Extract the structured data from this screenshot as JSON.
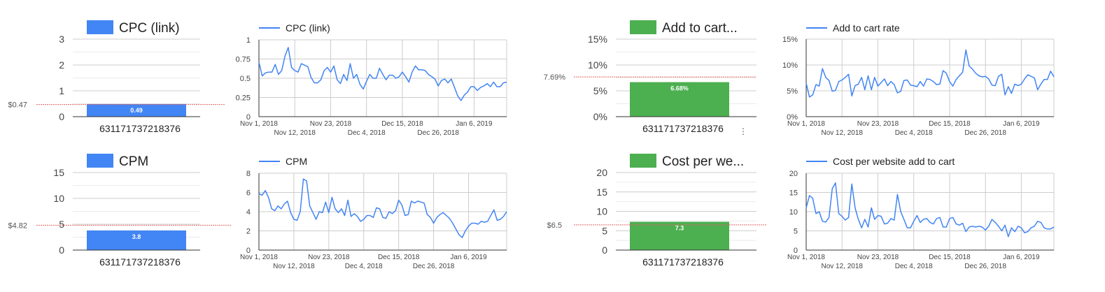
{
  "chart_data": [
    {
      "type": "bar",
      "title": "CPC (link)",
      "categories": [
        "631171737218376"
      ],
      "series": [
        {
          "name": "CPC (link)",
          "values": [
            0.49
          ]
        }
      ],
      "data_labels": [
        "0.49"
      ],
      "yticks": [
        "0",
        "1",
        "2",
        "3"
      ],
      "ylim": [
        0,
        3
      ],
      "reference_line": {
        "label": "$0.47",
        "value": 0.47
      },
      "color": "#4285f4",
      "grid": true
    },
    {
      "type": "line",
      "series": [
        {
          "name": "CPC (link)",
          "values": [
            0.71,
            0.53,
            0.57,
            0.58,
            0.58,
            0.68,
            0.55,
            0.6,
            0.79,
            0.9,
            0.64,
            0.6,
            0.58,
            0.69,
            0.67,
            0.65,
            0.51,
            0.44,
            0.44,
            0.48,
            0.6,
            0.64,
            0.58,
            0.66,
            0.48,
            0.43,
            0.55,
            0.47,
            0.69,
            0.5,
            0.55,
            0.42,
            0.36,
            0.46,
            0.55,
            0.5,
            0.5,
            0.63,
            0.55,
            0.48,
            0.54,
            0.54,
            0.5,
            0.52,
            0.58,
            0.52,
            0.45,
            0.58,
            0.66,
            0.61,
            0.61,
            0.6,
            0.55,
            0.52,
            0.49,
            0.4,
            0.47,
            0.49,
            0.44,
            0.49,
            0.38,
            0.27,
            0.21,
            0.28,
            0.32,
            0.39,
            0.39,
            0.34,
            0.38,
            0.4,
            0.43,
            0.39,
            0.45,
            0.39,
            0.39,
            0.44,
            0.45
          ]
        }
      ],
      "x_start": "Nov 1, 2018",
      "x_ticks_top": [
        "Nov 1, 2018",
        "Nov 23, 2018",
        "Dec 15, 2018",
        "Jan 6, 2019"
      ],
      "x_ticks_bottom": [
        "Nov 12, 2018",
        "Dec 4, 2018",
        "Dec 26, 2018"
      ],
      "yticks": [
        "0",
        "0.25",
        "0.5",
        "0.75",
        "1"
      ],
      "ylim": [
        0,
        1
      ],
      "legend_position": "top",
      "color": "#4285f4",
      "grid": true
    },
    {
      "type": "bar",
      "title": "Add to cart...",
      "categories": [
        "631171737218376"
      ],
      "series": [
        {
          "name": "Add to cart rate",
          "values": [
            6.68
          ]
        }
      ],
      "data_labels": [
        "6.68%"
      ],
      "yticks": [
        "0%",
        "5%",
        "10%",
        "15%"
      ],
      "ylim": [
        0,
        15
      ],
      "reference_line": {
        "label": "7.69%",
        "value": 7.69
      },
      "color": "#4caf50",
      "grid": true
    },
    {
      "type": "line",
      "series": [
        {
          "name": "Add to cart rate",
          "values": [
            6.5,
            3.8,
            4.2,
            6.2,
            5.9,
            9.3,
            7.6,
            7.0,
            4.9,
            5.1,
            6.8,
            7.1,
            7.6,
            8.2,
            4.0,
            6.0,
            6.3,
            7.6,
            5.2,
            7.9,
            5.2,
            7.6,
            5.9,
            6.6,
            7.3,
            6.0,
            6.8,
            6.2,
            4.6,
            4.9,
            7.0,
            7.1,
            6.1,
            6.0,
            5.8,
            6.8,
            5.9,
            7.3,
            7.2,
            6.8,
            6.2,
            6.3,
            8.9,
            8.4,
            6.8,
            5.9,
            7.2,
            7.9,
            8.6,
            12.9,
            9.8,
            9.2,
            8.4,
            7.9,
            7.7,
            7.8,
            7.3,
            6.1,
            6.0,
            7.8,
            8.2,
            4.2,
            5.8,
            4.5,
            6.3,
            6.0,
            6.3,
            7.3,
            8.1,
            7.8,
            7.5,
            5.2,
            6.3,
            7.2,
            7.2,
            8.8,
            7.7
          ]
        }
      ],
      "x_start": "Nov 1, 2018",
      "x_ticks_top": [
        "Nov 1, 2018",
        "Nov 23, 2018",
        "Dec 15, 2018",
        "Jan 6, 2019"
      ],
      "x_ticks_bottom": [
        "Nov 12, 2018",
        "Dec 4, 2018",
        "Dec 26, 2018"
      ],
      "yticks": [
        "0%",
        "5%",
        "10%",
        "15%"
      ],
      "ylim": [
        0,
        15
      ],
      "legend_position": "top",
      "color": "#4285f4",
      "grid": true
    },
    {
      "type": "bar",
      "title": "CPM",
      "categories": [
        "631171737218376"
      ],
      "series": [
        {
          "name": "CPM",
          "values": [
            3.8
          ]
        }
      ],
      "data_labels": [
        "3.8"
      ],
      "yticks": [
        "0",
        "5",
        "10",
        "15"
      ],
      "ylim": [
        0,
        15
      ],
      "reference_line": {
        "label": "$4.82",
        "value": 4.82
      },
      "color": "#4285f4",
      "grid": true
    },
    {
      "type": "line",
      "series": [
        {
          "name": "CPM",
          "values": [
            5.9,
            5.7,
            6.2,
            5.5,
            4.3,
            4.1,
            4.6,
            4.3,
            4.8,
            5.1,
            3.9,
            3.2,
            3.1,
            4.0,
            7.4,
            7.2,
            4.6,
            3.9,
            3.2,
            4.0,
            3.9,
            5.0,
            3.9,
            5.5,
            4.3,
            3.9,
            4.3,
            3.6,
            5.2,
            3.5,
            3.8,
            3.5,
            3.0,
            3.2,
            3.6,
            3.6,
            3.4,
            4.4,
            4.3,
            3.4,
            3.3,
            4.0,
            3.8,
            4.1,
            5.2,
            4.7,
            3.6,
            3.7,
            5.1,
            4.9,
            5.1,
            5.0,
            4.9,
            3.7,
            3.4,
            2.8,
            3.4,
            3.7,
            3.9,
            3.6,
            3.3,
            2.8,
            2.2,
            1.6,
            1.3,
            2.0,
            2.5,
            2.8,
            2.8,
            2.7,
            3.0,
            2.9,
            3.0,
            3.6,
            4.2,
            3.1,
            3.2,
            3.5,
            4.0
          ]
        }
      ],
      "x_start": "Nov 1, 2018",
      "x_ticks_top": [
        "Nov 1, 2018",
        "Nov 23, 2018",
        "Dec 15, 2018",
        "Jan 6, 2019"
      ],
      "x_ticks_bottom": [
        "Nov 12, 2018",
        "Dec 4, 2018",
        "Dec 26, 2018"
      ],
      "yticks": [
        "0",
        "2",
        "4",
        "6",
        "8"
      ],
      "ylim": [
        0,
        8
      ],
      "legend_position": "top",
      "color": "#4285f4",
      "grid": true
    },
    {
      "type": "bar",
      "title": "Cost per we...",
      "categories": [
        "631171737218376"
      ],
      "series": [
        {
          "name": "Cost per website add to cart",
          "values": [
            7.3
          ]
        }
      ],
      "data_labels": [
        "7.3"
      ],
      "yticks": [
        "0",
        "5",
        "10",
        "15",
        "20"
      ],
      "ylim": [
        0,
        20
      ],
      "reference_line": {
        "label": "$6.5",
        "value": 6.5
      },
      "color": "#4caf50",
      "grid": true
    },
    {
      "type": "line",
      "series": [
        {
          "name": "Cost per website add to cart",
          "values": [
            11.0,
            14.2,
            13.5,
            9.5,
            10.0,
            7.5,
            7.3,
            8.5,
            16.0,
            17.5,
            9.5,
            8.8,
            7.8,
            8.5,
            17.2,
            11.0,
            8.0,
            5.8,
            8.0,
            6.0,
            11.0,
            8.0,
            9.0,
            8.8,
            6.8,
            7.0,
            8.2,
            7.8,
            14.5,
            10.0,
            8.0,
            5.8,
            5.8,
            7.5,
            9.0,
            7.2,
            8.0,
            8.2,
            7.2,
            6.8,
            8.2,
            8.5,
            6.0,
            6.0,
            8.2,
            8.5,
            6.8,
            6.5,
            7.0,
            4.8,
            6.0,
            6.2,
            6.0,
            6.2,
            6.0,
            5.2,
            6.2,
            8.0,
            7.2,
            6.2,
            5.0,
            6.5,
            3.5,
            5.8,
            4.8,
            6.2,
            5.8,
            4.5,
            4.8,
            5.8,
            6.2,
            7.5,
            7.2,
            5.8,
            5.5,
            5.5,
            6.0
          ]
        }
      ],
      "x_start": "Nov 1, 2018",
      "x_ticks_top": [
        "Nov 1, 2018",
        "Nov 23, 2018",
        "Dec 15, 2018",
        "Jan 6, 2019"
      ],
      "x_ticks_bottom": [
        "Nov 12, 2018",
        "Dec 4, 2018",
        "Dec 26, 2018"
      ],
      "yticks": [
        "0",
        "5",
        "10",
        "15",
        "20"
      ],
      "ylim": [
        0,
        20
      ],
      "legend_position": "top",
      "color": "#4285f4",
      "grid": true
    }
  ],
  "menu_icon": "vertical-ellipsis-icon"
}
